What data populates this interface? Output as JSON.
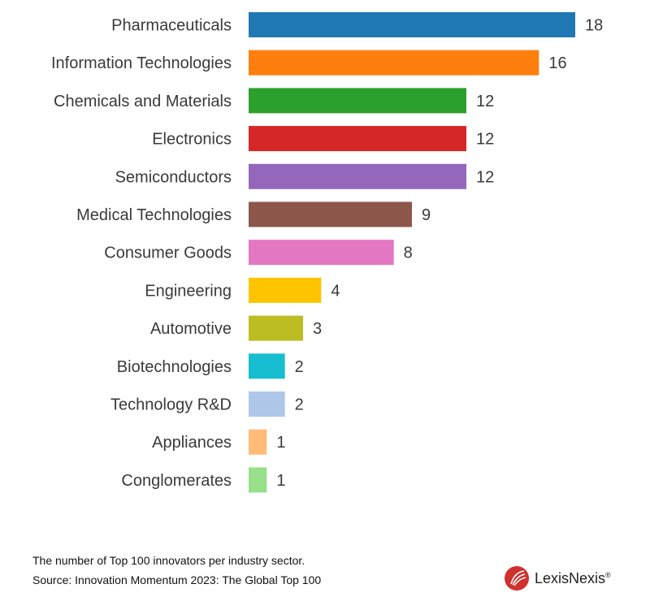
{
  "chart_data": {
    "type": "bar",
    "orientation": "horizontal",
    "categories": [
      "Pharmaceuticals",
      "Information Technologies",
      "Chemicals and Materials",
      "Electronics",
      "Semiconductors",
      "Medical Technologies",
      "Consumer Goods",
      "Engineering",
      "Automotive",
      "Biotechnologies",
      "Technology R&D",
      "Appliances",
      "Conglomerates"
    ],
    "values": [
      18,
      16,
      12,
      12,
      12,
      9,
      8,
      4,
      3,
      2,
      2,
      1,
      1
    ],
    "colors": [
      "#1f77b4",
      "#ff7f0e",
      "#2ca02c",
      "#d62728",
      "#9467bd",
      "#8c564b",
      "#e377c2",
      "#ffc400",
      "#bcbd22",
      "#17becf",
      "#aec7e8",
      "#ffbb78",
      "#98df8a"
    ],
    "xlim": [
      0,
      18
    ],
    "grid": false,
    "legend": "none"
  },
  "footer": {
    "caption": "The number of Top 100 innovators per industry sector.",
    "source": "Source: Innovation Momentum 2023: The Global Top 100"
  },
  "logo": {
    "text": "LexisNexis",
    "mark": "®",
    "color": "#d0312d"
  }
}
